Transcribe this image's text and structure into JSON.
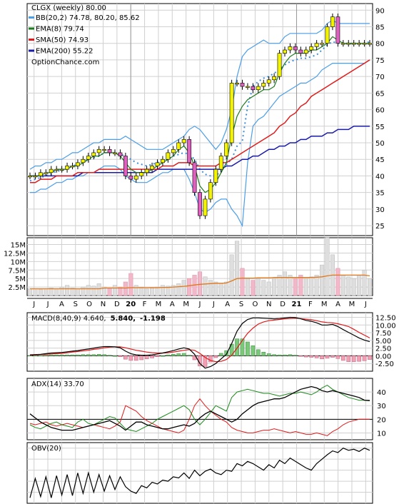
{
  "chart_data": [
    {
      "type": "candlestick",
      "panel": "price",
      "title": "CLGX (weekly) 80.00",
      "watermark": "OptionChance.com",
      "legend": [
        {
          "label": "BB(20,2) 74.78, 80.20, 85.62",
          "color": "#4a9ee8"
        },
        {
          "label": "EMA(8) 79.74",
          "color": "#1b7a1b"
        },
        {
          "label": "SMA(50) 74.93",
          "color": "#e01b1b"
        },
        {
          "label": "EMA(200) 55.22",
          "color": "#1a1aa8"
        }
      ],
      "y_ticks": [
        90,
        85,
        80,
        75,
        70,
        65,
        60,
        55,
        50,
        45,
        40,
        35,
        30,
        25
      ],
      "ylim": [
        22,
        92
      ],
      "x_ticks": [
        "J",
        "J",
        "A",
        "S",
        "O",
        "N",
        "D",
        "20",
        "F",
        "M",
        "A",
        "M",
        "J",
        "J",
        "A",
        "S",
        "O",
        "N",
        "D",
        "21",
        "F",
        "M",
        "A",
        "M",
        "J"
      ],
      "series": [
        {
          "name": "Close",
          "values": [
            40,
            40,
            41,
            41,
            42,
            42,
            42,
            43,
            43,
            44,
            45,
            46,
            47,
            48,
            48,
            47,
            47,
            46,
            40,
            39,
            40,
            41,
            42,
            43,
            44,
            45,
            47,
            48,
            50,
            51,
            44,
            35,
            28,
            33,
            38,
            42,
            46,
            50,
            68,
            68,
            67,
            67,
            66,
            67,
            68,
            69,
            70,
            77,
            78,
            79,
            78,
            77,
            78,
            79,
            80,
            80,
            85,
            88,
            80,
            80,
            80,
            80,
            80,
            80,
            80
          ]
        },
        {
          "name": "BB lower",
          "values": [
            35,
            35,
            36,
            36,
            37,
            38,
            38,
            39,
            39,
            40,
            40,
            41,
            41,
            42,
            43,
            43,
            43,
            42,
            40,
            39,
            38,
            38,
            38,
            39,
            40,
            41,
            41,
            42,
            42,
            42,
            39,
            35,
            30,
            29,
            30,
            32,
            33,
            33,
            30,
            28,
            25,
            44,
            55,
            57,
            58,
            60,
            62,
            64,
            65,
            66,
            67,
            68,
            68,
            69,
            70,
            72,
            73,
            74,
            74,
            74,
            74,
            74,
            74,
            74,
            75
          ]
        },
        {
          "name": "BB upper",
          "values": [
            42,
            43,
            43,
            44,
            44,
            45,
            45,
            46,
            47,
            47,
            48,
            49,
            50,
            50,
            51,
            51,
            51,
            51,
            52,
            51,
            50,
            49,
            48,
            48,
            48,
            48,
            49,
            50,
            51,
            52,
            54,
            55,
            54,
            52,
            50,
            48,
            50,
            54,
            60,
            70,
            76,
            78,
            79,
            80,
            81,
            80,
            80,
            80,
            82,
            83,
            83,
            83,
            83,
            83,
            83,
            84,
            86,
            87,
            86,
            86,
            86,
            86,
            86,
            86,
            86
          ]
        },
        {
          "name": "EMA(8)",
          "values": [
            40,
            40,
            40,
            41,
            41,
            42,
            42,
            42,
            43,
            43,
            44,
            45,
            46,
            46,
            47,
            47,
            47,
            46,
            44,
            42,
            41,
            41,
            41,
            42,
            43,
            44,
            45,
            46,
            48,
            49,
            47,
            43,
            37,
            35,
            36,
            38,
            41,
            44,
            52,
            58,
            61,
            63,
            64,
            65,
            66,
            66,
            67,
            71,
            74,
            76,
            77,
            77,
            77,
            78,
            78,
            79,
            80,
            82,
            81,
            80,
            80,
            80,
            80,
            80,
            80
          ]
        },
        {
          "name": "SMA(50)",
          "values": [
            38,
            38,
            39,
            39,
            39,
            40,
            40,
            40,
            40,
            41,
            41,
            41,
            41,
            42,
            42,
            42,
            42,
            42,
            42,
            42,
            42,
            42,
            42,
            42,
            42,
            43,
            43,
            43,
            44,
            44,
            44,
            43,
            43,
            43,
            43,
            43,
            44,
            44,
            45,
            46,
            47,
            48,
            49,
            50,
            51,
            52,
            53,
            55,
            56,
            58,
            59,
            61,
            62,
            64,
            65,
            66,
            67,
            68,
            69,
            70,
            71,
            72,
            73,
            74,
            75
          ]
        },
        {
          "name": "EMA(200)",
          "values": [
            40,
            40,
            40,
            40,
            40,
            40,
            40,
            40,
            40,
            40,
            41,
            41,
            41,
            41,
            41,
            41,
            41,
            41,
            41,
            41,
            41,
            41,
            41,
            41,
            42,
            42,
            42,
            42,
            42,
            42,
            42,
            42,
            42,
            42,
            42,
            42,
            42,
            43,
            43,
            44,
            45,
            45,
            46,
            46,
            47,
            48,
            48,
            49,
            49,
            50,
            50,
            51,
            51,
            52,
            52,
            52,
            53,
            53,
            54,
            54,
            54,
            55,
            55,
            55,
            55
          ]
        }
      ]
    },
    {
      "type": "bar",
      "panel": "volume",
      "y_ticks": [
        "15M",
        "12.5M",
        "10M",
        "7.5M",
        "5M",
        "2.5M"
      ],
      "y_tick_values": [
        15,
        12.5,
        10,
        7.5,
        5,
        2.5
      ],
      "ylim": [
        0,
        17
      ],
      "series": [
        {
          "name": "Volume",
          "values": [
            2,
            2,
            1.8,
            2,
            2.2,
            2,
            2.5,
            3,
            2.2,
            2,
            2.5,
            3,
            2.8,
            3.5,
            2.5,
            2.2,
            3,
            2.5,
            4,
            6.5,
            3,
            2.5,
            2,
            2.2,
            2.5,
            3,
            2.8,
            3,
            3.5,
            4.5,
            5,
            6,
            7,
            5.5,
            4.5,
            4,
            3.5,
            4,
            12,
            16,
            8,
            5,
            4.5,
            5,
            4.5,
            4,
            5,
            6,
            7,
            6,
            5,
            6,
            5,
            5.5,
            6,
            9,
            17,
            12,
            8,
            6,
            5.5,
            5,
            6,
            7.5,
            5
          ]
        },
        {
          "name": "Volume average",
          "values": [
            2,
            2,
            2,
            2,
            2,
            2,
            2,
            2,
            2,
            2,
            2,
            2,
            2,
            2,
            2.2,
            2.2,
            2.2,
            2.2,
            2.2,
            2.3,
            2.3,
            2.3,
            2.3,
            2.3,
            2.3,
            2.4,
            2.4,
            2.5,
            2.6,
            2.7,
            2.9,
            3.1,
            3.3,
            3.4,
            3.5,
            3.6,
            3.6,
            3.7,
            4.3,
            5,
            5.1,
            5.1,
            5.1,
            5.2,
            5.2,
            5.2,
            5.3,
            5.3,
            5.3,
            5.3,
            5.3,
            5.3,
            5.3,
            5.3,
            5.4,
            5.5,
            5.8,
            6,
            6,
            6,
            6,
            6,
            6,
            6,
            5.8
          ]
        }
      ]
    },
    {
      "type": "line",
      "panel": "macd",
      "legend": [
        {
          "label": "MACD(8,40,9) 4.640,",
          "color": "#000000"
        },
        {
          "label": "5.840,",
          "color": "#e01b1b"
        },
        {
          "label": "-1.198",
          "color": "#1a5bd6"
        }
      ],
      "y_ticks": [
        12.5,
        10.0,
        7.5,
        5.0,
        2.5,
        0.0,
        -2.5
      ],
      "y_tick_labels": [
        "12.50",
        "10.00",
        "7.50",
        "5.00",
        "2.50",
        "0.00",
        "-2.50"
      ],
      "ylim": [
        -5,
        14
      ],
      "series": [
        {
          "name": "MACD",
          "values": [
            0.3,
            0.4,
            0.5,
            0.7,
            0.9,
            1,
            1.1,
            1.3,
            1.5,
            1.7,
            2,
            2.2,
            2.5,
            2.8,
            3,
            3,
            2.9,
            2.6,
            1.5,
            0.7,
            0.3,
            0.2,
            0.2,
            0.3,
            0.6,
            0.9,
            1.3,
            1.7,
            2.2,
            2.6,
            2.2,
            0.5,
            -2.5,
            -4,
            -3.5,
            -2.5,
            -1,
            0.5,
            4,
            8,
            10.5,
            11.8,
            12.3,
            12.3,
            12.2,
            12.1,
            12,
            12.1,
            12.3,
            12.5,
            12.4,
            12,
            11.5,
            11.2,
            10.7,
            10,
            10,
            10.2,
            9.5,
            8.5,
            7.6,
            6.7,
            5.8,
            5.1,
            4.6
          ]
        },
        {
          "name": "Signal",
          "values": [
            0.2,
            0.3,
            0.4,
            0.5,
            0.6,
            0.7,
            0.8,
            1,
            1.2,
            1.4,
            1.6,
            1.8,
            2.1,
            2.3,
            2.6,
            2.8,
            2.9,
            2.9,
            2.6,
            2.2,
            1.8,
            1.5,
            1.2,
            1,
            0.9,
            0.9,
            1,
            1.2,
            1.5,
            1.8,
            2,
            1.8,
            0.8,
            -0.5,
            -1.5,
            -1.9,
            -1.8,
            -1.2,
            0.2,
            2.5,
            5,
            7.3,
            9,
            10.3,
            11,
            11.4,
            11.6,
            11.8,
            12,
            12.1,
            12.2,
            12.1,
            11.9,
            11.7,
            11.4,
            11,
            10.8,
            10.7,
            10.4,
            10,
            9.5,
            8.6,
            7.6,
            6.7,
            5.8
          ]
        },
        {
          "name": "Histogram",
          "values": [
            0.1,
            0.1,
            0.1,
            0.2,
            0.3,
            0.3,
            0.3,
            0.3,
            0.3,
            0.3,
            0.4,
            0.4,
            0.4,
            0.5,
            0.4,
            0.2,
            0,
            -0.3,
            -1.1,
            -1.5,
            -1.5,
            -1.3,
            -1,
            -0.7,
            -0.3,
            0,
            0.3,
            0.5,
            0.7,
            0.8,
            0.2,
            -1.3,
            -3.3,
            -3.5,
            -2,
            -0.6,
            0.8,
            1.7,
            3.8,
            5.5,
            5.5,
            4.5,
            3.3,
            2,
            1.2,
            0.7,
            0.4,
            0.3,
            0.3,
            0.4,
            0.2,
            -0.1,
            -0.4,
            -0.5,
            -0.7,
            -1,
            -0.8,
            -0.5,
            -0.9,
            -1.5,
            -1.9,
            -1.9,
            -1.8,
            -1.6,
            -1.2
          ]
        }
      ]
    },
    {
      "type": "line",
      "panel": "adx",
      "legend": [
        {
          "label": "ADX(14) 33.70",
          "color": "#000000"
        }
      ],
      "y_ticks": [
        40,
        30,
        20,
        10
      ],
      "ylim": [
        5,
        50
      ],
      "series": [
        {
          "name": "ADX",
          "values": [
            24,
            21,
            18,
            16,
            14,
            13,
            12,
            12,
            12,
            13,
            14,
            15,
            16,
            17,
            18,
            19,
            17,
            15,
            12,
            15,
            18,
            18,
            16,
            15,
            14,
            13,
            13,
            14,
            15,
            16,
            15,
            17,
            21,
            24,
            26,
            24,
            22,
            20,
            18,
            20,
            24,
            27,
            30,
            32,
            33,
            34,
            35,
            35,
            36,
            38,
            40,
            42,
            43,
            44,
            43,
            41,
            40,
            41,
            40,
            39,
            38,
            37,
            36,
            34,
            33.7
          ]
        },
        {
          "name": "+DI",
          "values": [
            16,
            14,
            13,
            15,
            17,
            18,
            16,
            15,
            14,
            18,
            20,
            17,
            16,
            18,
            20,
            22,
            21,
            17,
            13,
            12,
            11,
            13,
            15,
            17,
            20,
            22,
            24,
            26,
            28,
            30,
            27,
            20,
            16,
            20,
            25,
            30,
            28,
            26,
            36,
            40,
            41,
            42,
            41,
            40,
            39,
            39,
            38,
            37,
            38,
            39,
            39,
            40,
            39,
            38,
            40,
            43,
            45,
            42,
            40,
            38,
            36,
            35,
            34,
            34,
            34
          ]
        },
        {
          "name": "-DI",
          "values": [
            17,
            16,
            17,
            18,
            16,
            15,
            16,
            17,
            16,
            15,
            14,
            15,
            16,
            15,
            14,
            13,
            15,
            18,
            30,
            28,
            26,
            22,
            19,
            17,
            15,
            13,
            12,
            11,
            10,
            12,
            20,
            30,
            35,
            30,
            26,
            23,
            20,
            18,
            14,
            12,
            11,
            10,
            10,
            11,
            12,
            12,
            13,
            12,
            11,
            10,
            11,
            10,
            9,
            9,
            10,
            9,
            8,
            11,
            13,
            16,
            18,
            19,
            20,
            20,
            20
          ]
        }
      ]
    },
    {
      "type": "line",
      "panel": "obv",
      "legend": [
        {
          "label": "OBV(20)",
          "color": "#000000"
        }
      ],
      "series": [
        {
          "name": "OBV",
          "values": [
            10,
            45,
            12,
            48,
            10,
            50,
            15,
            52,
            14,
            55,
            18,
            55,
            20,
            52,
            22,
            50,
            25,
            48,
            30,
            22,
            18,
            32,
            28,
            38,
            35,
            42,
            40,
            48,
            46,
            55,
            45,
            60,
            50,
            58,
            62,
            55,
            52,
            60,
            58,
            72,
            68,
            76,
            72,
            66,
            60,
            70,
            64,
            78,
            72,
            82,
            76,
            70,
            64,
            60,
            72,
            80,
            88,
            95,
            92,
            100,
            96,
            98,
            94,
            100,
            96
          ]
        }
      ]
    }
  ]
}
